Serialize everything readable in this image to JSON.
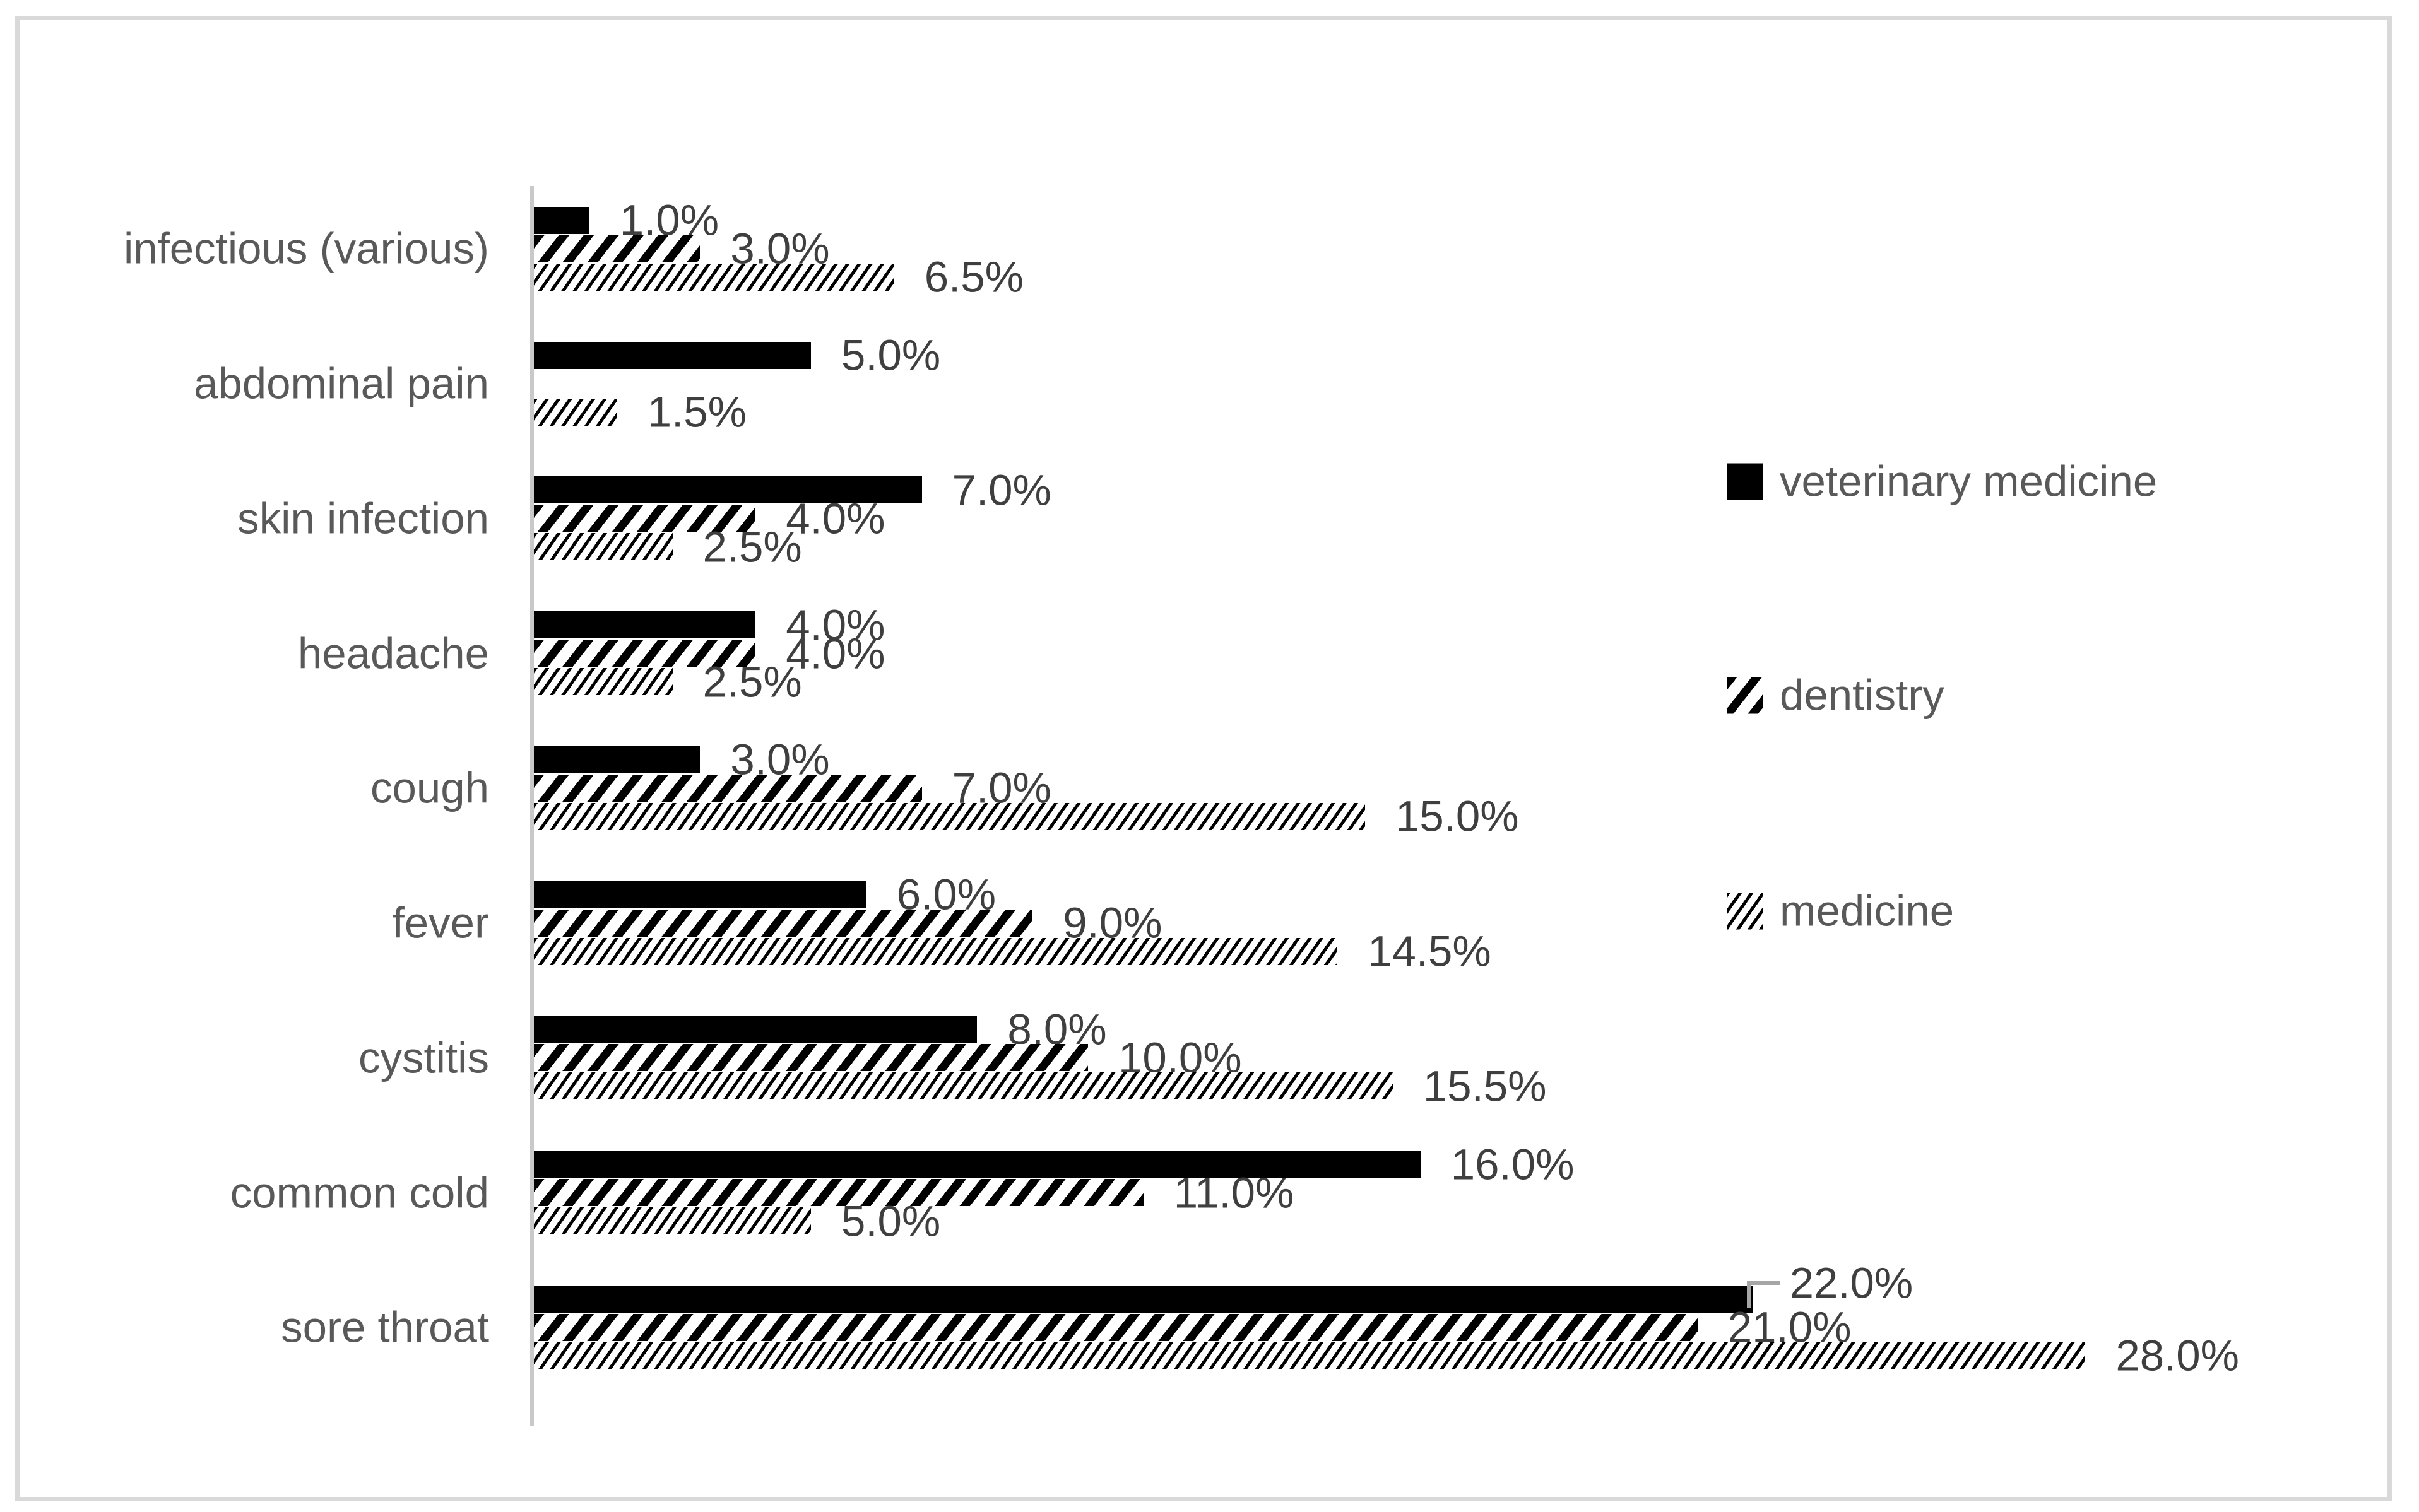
{
  "chart_data": {
    "type": "bar",
    "orientation": "horizontal",
    "title": "",
    "xlabel": "",
    "ylabel": "",
    "xlim": [
      0,
      30
    ],
    "grid": false,
    "legend_position": "right",
    "value_format": "one-decimal-percent",
    "categories": [
      "infectious (various)",
      "abdominal pain",
      "skin infection",
      "headache",
      "cough",
      "fever",
      "cystitis",
      "common cold",
      "sore throat"
    ],
    "series": [
      {
        "name": "veterinary medicine",
        "pattern": "solid-black",
        "values": [
          1.0,
          5.0,
          7.0,
          4.0,
          3.0,
          6.0,
          8.0,
          16.0,
          22.0
        ],
        "labels": [
          "1.0%",
          "5.0%",
          "7.0%",
          "4.0%",
          "3.0%",
          "6.0%",
          "8.0%",
          "16.0%",
          "22.0%"
        ]
      },
      {
        "name": "dentistry",
        "pattern": "wide-diagonal-hatch",
        "values": [
          3.0,
          null,
          4.0,
          4.0,
          7.0,
          9.0,
          10.0,
          11.0,
          21.0
        ],
        "labels": [
          "3.0%",
          null,
          "4.0%",
          "4.0%",
          "7.0%",
          "9.0%",
          "10.0%",
          "11.0%",
          "21.0%"
        ]
      },
      {
        "name": "medicine",
        "pattern": "fine-diagonal-hatch",
        "values": [
          6.5,
          1.5,
          2.5,
          2.5,
          15.0,
          14.5,
          15.5,
          5.0,
          28.0
        ],
        "labels": [
          "6.5%",
          "1.5%",
          "2.5%",
          "2.5%",
          "15.0%",
          "14.5%",
          "15.5%",
          "5.0%",
          "28.0%"
        ]
      }
    ],
    "leader_label": {
      "category": "sore throat",
      "series": "veterinary medicine"
    }
  },
  "colors": {
    "bar_fill": "#000000",
    "pattern_background": "#FFFFFF",
    "data_label": "#3F3F3F",
    "category_label": "#595959",
    "legend_label": "#595959",
    "axis_line": "#C9C9C9",
    "frame_border": "#D9D9D9",
    "leader_line": "#A6A6A6",
    "background": "#FFFFFF"
  }
}
